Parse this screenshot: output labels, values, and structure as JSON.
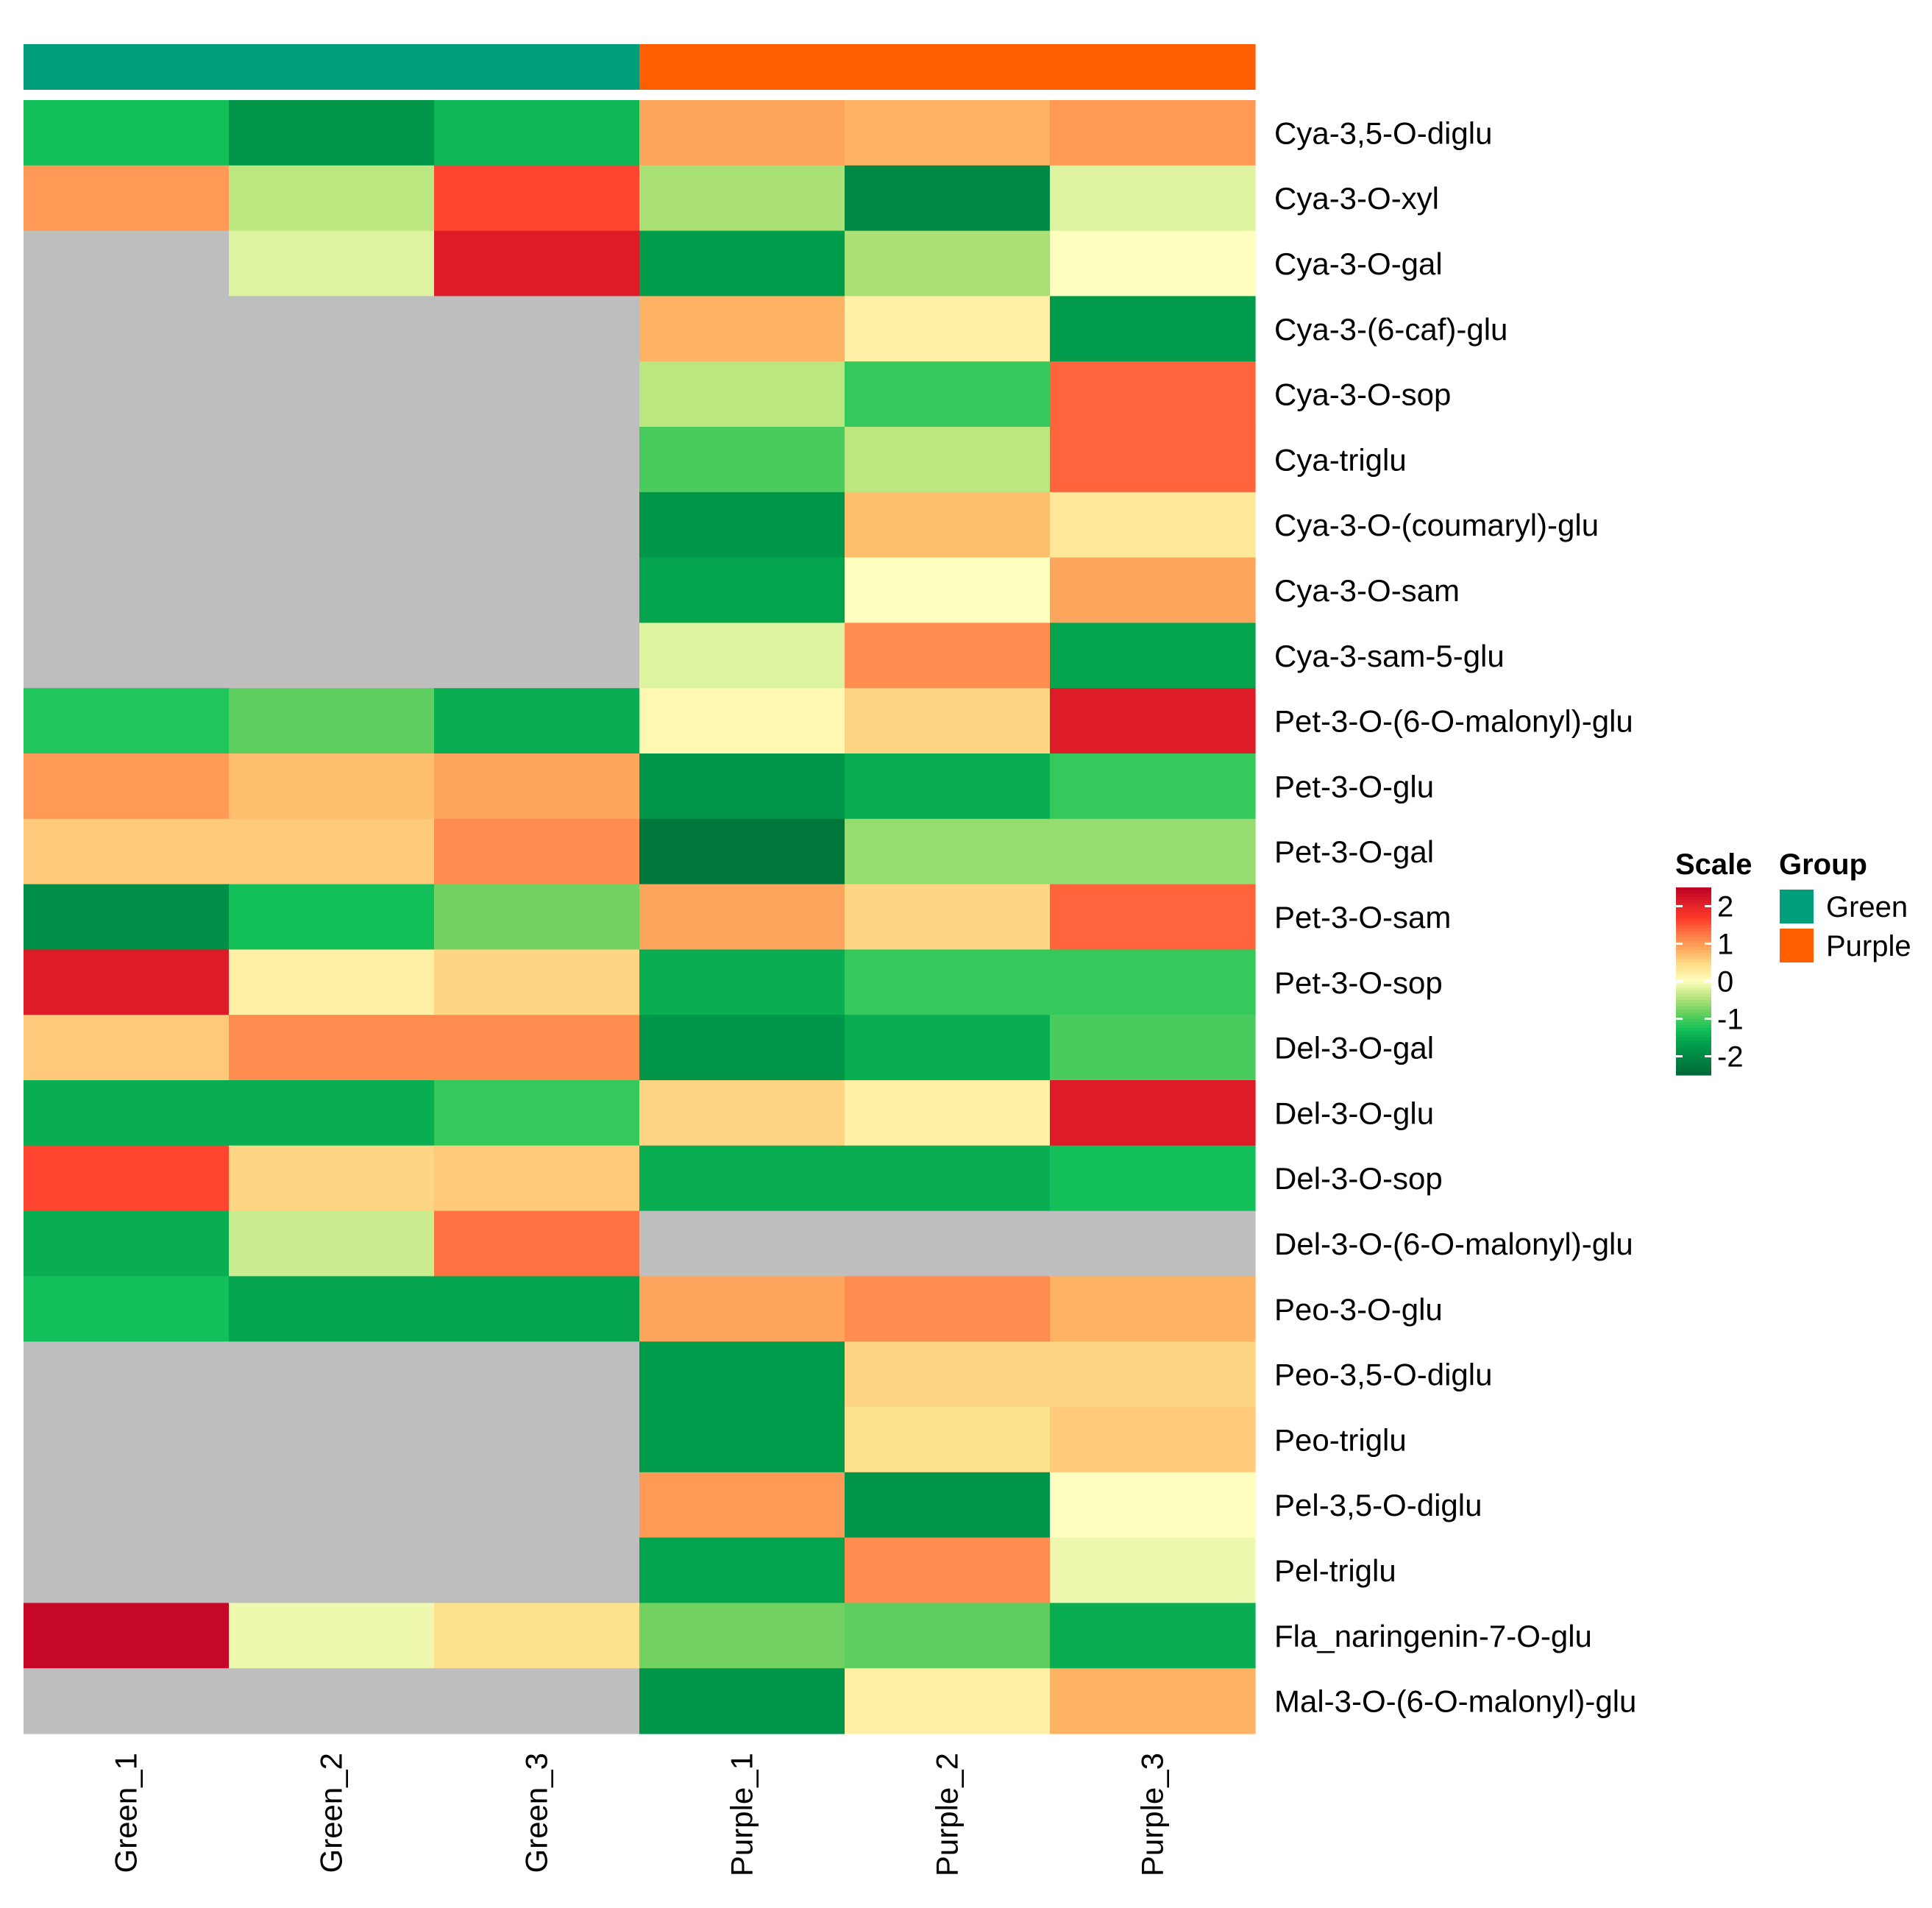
{
  "chart_data": {
    "type": "heatmap",
    "title": "",
    "columns": [
      "Green_1",
      "Green_2",
      "Green_3",
      "Purple_1",
      "Purple_2",
      "Purple_3"
    ],
    "column_groups": [
      "Green",
      "Green",
      "Green",
      "Purple",
      "Purple",
      "Purple"
    ],
    "rows": [
      "Cya-3,5-O-diglu",
      "Cya-3-O-xyl",
      "Cya-3-O-gal",
      "Cya-3-(6-caf)-glu",
      "Cya-3-O-sop",
      "Cya-triglu",
      "Cya-3-O-(coumaryl)-glu",
      "Cya-3-O-sam",
      "Cya-3-sam-5-glu",
      "Pet-3-O-(6-O-malonyl)-glu",
      "Pet-3-O-glu",
      "Pet-3-O-gal",
      "Pet-3-O-sam",
      "Pet-3-O-sop",
      "Del-3-O-gal",
      "Del-3-O-glu",
      "Del-3-O-sop",
      "Del-3-O-(6-O-malonyl)-glu",
      "Peo-3-O-glu",
      "Peo-3,5-O-diglu",
      "Peo-triglu",
      "Pel-3,5-O-diglu",
      "Pel-triglu",
      "Fla_naringenin-7-O-glu",
      "Mal-3-O-(6-O-malonyl)-glu"
    ],
    "values": [
      [
        -1.3,
        -1.8,
        -1.4,
        0.9,
        0.8,
        1.0
      ],
      [
        1.0,
        -0.4,
        1.6,
        -0.5,
        -2.0,
        -0.2
      ],
      [
        null,
        -0.2,
        2.1,
        -1.7,
        -0.5,
        0.0
      ],
      [
        null,
        null,
        null,
        0.8,
        0.2,
        -1.7
      ],
      [
        null,
        null,
        null,
        -0.4,
        -1.1,
        1.4
      ],
      [
        null,
        null,
        null,
        -1.0,
        -0.4,
        1.4
      ],
      [
        null,
        null,
        null,
        -1.8,
        0.7,
        0.3
      ],
      [
        null,
        null,
        null,
        -1.6,
        0.0,
        0.9
      ],
      [
        null,
        null,
        null,
        -0.2,
        1.1,
        -1.6
      ],
      [
        -1.2,
        -0.9,
        -1.5,
        0.1,
        0.5,
        2.1
      ],
      [
        1.0,
        0.7,
        0.9,
        -1.8,
        -1.5,
        -1.1
      ],
      [
        0.6,
        0.6,
        1.1,
        -2.3,
        -0.6,
        -0.6
      ],
      [
        -1.9,
        -1.3,
        -0.8,
        0.9,
        0.5,
        1.4
      ],
      [
        2.1,
        0.2,
        0.5,
        -1.5,
        -1.1,
        -1.1
      ],
      [
        0.6,
        1.1,
        1.1,
        -1.8,
        -1.5,
        -1.0
      ],
      [
        -1.5,
        -1.5,
        -1.1,
        0.5,
        0.2,
        2.1
      ],
      [
        1.6,
        0.5,
        0.6,
        -1.5,
        -1.5,
        -1.3
      ],
      [
        -1.5,
        -0.3,
        1.3,
        null,
        null,
        null
      ],
      [
        -1.3,
        -1.6,
        -1.6,
        0.9,
        1.1,
        0.8
      ],
      [
        null,
        null,
        null,
        -1.7,
        0.5,
        0.5
      ],
      [
        null,
        null,
        null,
        -1.7,
        0.4,
        0.6
      ],
      [
        null,
        null,
        null,
        1.0,
        -1.8,
        0.0
      ],
      [
        null,
        null,
        null,
        -1.6,
        1.1,
        -0.1
      ],
      [
        2.4,
        -0.1,
        0.4,
        -0.8,
        -0.9,
        -1.5
      ],
      [
        null,
        null,
        null,
        -1.8,
        0.2,
        0.8
      ]
    ],
    "na_color": "#BEBEBE",
    "color_scale": {
      "title": "Scale",
      "range": [
        -2.5,
        2.5
      ],
      "ticks": [
        "2",
        "1",
        "0",
        "-1",
        "-2"
      ],
      "tick_values": [
        2,
        1,
        0,
        -1,
        -2
      ],
      "stops": [
        {
          "value": -2.5,
          "color": "#006837"
        },
        {
          "value": -1.67,
          "color": "#009E4D"
        },
        {
          "value": -1.25,
          "color": "#16C45A"
        },
        {
          "value": -0.83,
          "color": "#6CD15F"
        },
        {
          "value": -0.42,
          "color": "#B8E57D"
        },
        {
          "value": 0.0,
          "color": "#FFFFBF"
        },
        {
          "value": 0.42,
          "color": "#FEE08B"
        },
        {
          "value": 0.83,
          "color": "#FDAE61"
        },
        {
          "value": 1.25,
          "color": "#FF7A45"
        },
        {
          "value": 1.67,
          "color": "#FF3B2B"
        },
        {
          "value": 2.5,
          "color": "#BE0026"
        }
      ]
    },
    "group_legend": {
      "title": "Group",
      "items": [
        {
          "label": "Green",
          "color": "#009E7A"
        },
        {
          "label": "Purple",
          "color": "#FF5F00"
        }
      ]
    }
  }
}
